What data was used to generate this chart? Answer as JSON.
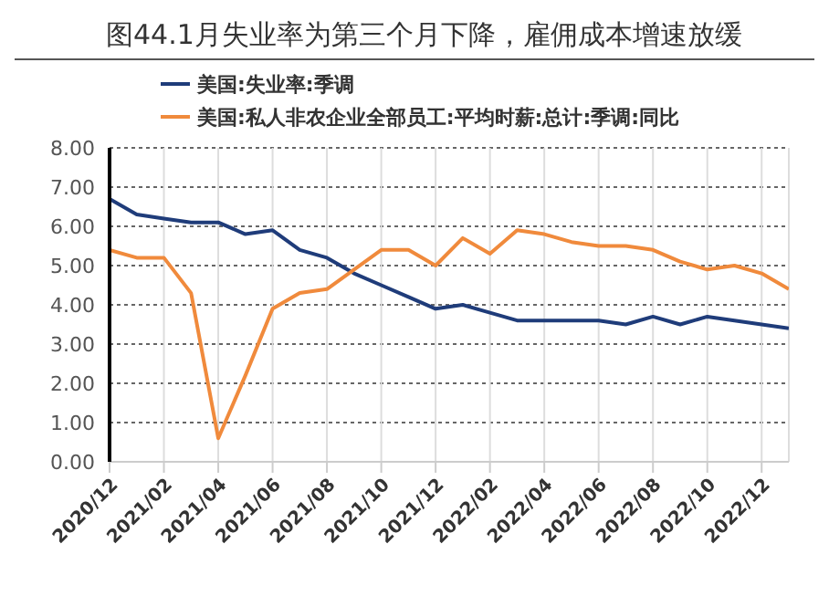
{
  "chart_data": {
    "type": "line",
    "title": "图44.1月失业率为第三个月下降，雇佣成本增速放缓",
    "categories": [
      "2020/12",
      null,
      "2021/02",
      null,
      "2021/04",
      null,
      "2021/06",
      null,
      "2021/08",
      null,
      "2021/10",
      null,
      "2021/12",
      null,
      "2022/02",
      null,
      "2022/04",
      null,
      "2022/06",
      null,
      "2022/08",
      null,
      "2022/10",
      null,
      "2022/12",
      null
    ],
    "series": [
      {
        "name": "美国:失业率:季调",
        "color": "#1f3c7a",
        "values": [
          6.7,
          6.3,
          6.2,
          6.1,
          6.1,
          5.8,
          5.9,
          5.4,
          5.2,
          4.8,
          4.5,
          4.2,
          3.9,
          4.0,
          3.8,
          3.6,
          3.6,
          3.6,
          3.6,
          3.5,
          3.7,
          3.5,
          3.7,
          3.6,
          3.5,
          3.4
        ]
      },
      {
        "name": "美国:私人非农企业全部员工:平均时薪:总计:季调:同比",
        "color": "#f08a3c",
        "values": [
          5.4,
          5.2,
          5.2,
          4.3,
          0.6,
          2.2,
          3.9,
          4.3,
          4.4,
          4.9,
          5.4,
          5.4,
          5.0,
          5.7,
          5.3,
          5.9,
          5.8,
          5.6,
          5.5,
          5.5,
          5.4,
          5.1,
          4.9,
          5.0,
          4.8,
          4.4
        ]
      }
    ],
    "ylim": [
      0,
      8
    ],
    "yticks": [
      {
        "value": 0,
        "label": "0.00"
      },
      {
        "value": 1,
        "label": "1.00"
      },
      {
        "value": 2,
        "label": "2.00"
      },
      {
        "value": 3,
        "label": "3.00"
      },
      {
        "value": 4,
        "label": "4.00"
      },
      {
        "value": 5,
        "label": "5.00"
      },
      {
        "value": 6,
        "label": "6.00"
      },
      {
        "value": 7,
        "label": "7.00"
      },
      {
        "value": 8,
        "label": "8.00"
      }
    ],
    "grid": true,
    "legend": "top",
    "marker": "none",
    "line_style": "solid"
  }
}
